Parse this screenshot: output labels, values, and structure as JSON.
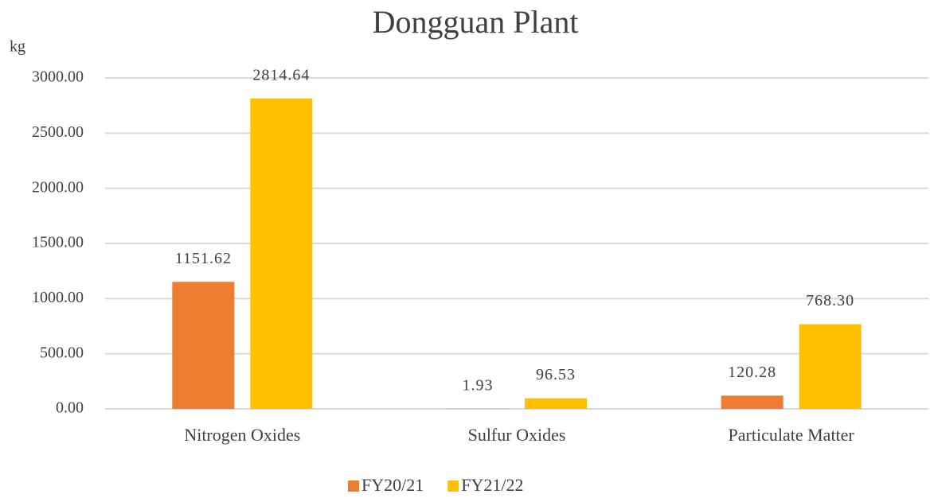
{
  "chart_data": {
    "type": "bar",
    "title": "Dongguan Plant",
    "y_label": "kg",
    "categories": [
      "Nitrogen Oxides",
      "Sulfur Oxides",
      "Particulate Matter"
    ],
    "series": [
      {
        "name": "FY20/21",
        "color": "#ED7D31",
        "values": [
          1151.62,
          1.93,
          120.28
        ],
        "value_labels": [
          "1151.62",
          "1.93",
          "120.28"
        ]
      },
      {
        "name": "FY21/22",
        "color": "#FFC000",
        "values": [
          2814.64,
          96.53,
          768.3
        ],
        "value_labels": [
          "2814.64",
          "96.53",
          "768.30"
        ]
      }
    ],
    "ylim": [
      0,
      3000
    ],
    "yticks": [
      {
        "value": 0,
        "label": "0.00"
      },
      {
        "value": 500,
        "label": "500.00"
      },
      {
        "value": 1000,
        "label": "1000.00"
      },
      {
        "value": 1500,
        "label": "1500.00"
      },
      {
        "value": 2000,
        "label": "2000.00"
      },
      {
        "value": 2500,
        "label": "2500.00"
      },
      {
        "value": 3000,
        "label": "3000.00"
      }
    ],
    "grid": true,
    "legend": "bottom"
  }
}
